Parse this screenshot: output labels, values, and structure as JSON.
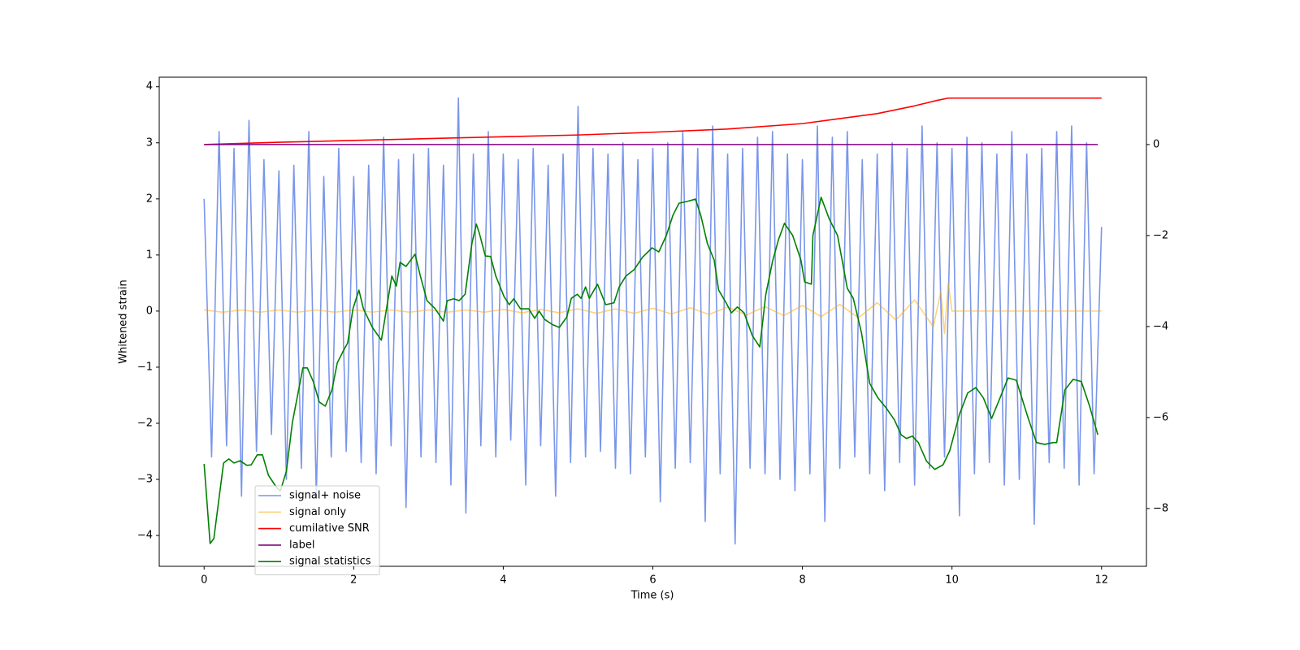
{
  "chart_data": {
    "type": "line",
    "xlabel": "Time (s)",
    "ylabel": "Whitened strain",
    "xlim": [
      -0.6,
      12.6
    ],
    "ylim": [
      -4.55,
      4.17
    ],
    "y2lim": [
      -9.27,
      1.48
    ],
    "xticks": [
      0,
      2,
      4,
      6,
      8,
      10,
      12
    ],
    "yticks": [
      {
        "value": -4,
        "label": "−4"
      },
      {
        "value": -3,
        "label": "−3"
      },
      {
        "value": -2,
        "label": "−2"
      },
      {
        "value": -1,
        "label": "−1"
      },
      0,
      1,
      2,
      3,
      4
    ],
    "y2ticks": [
      {
        "value": -8,
        "label": "−8"
      },
      {
        "value": -6,
        "label": "−6"
      },
      {
        "value": -4,
        "label": "−4"
      },
      {
        "value": -2,
        "label": "−2"
      },
      0
    ],
    "legend": "lower left",
    "series": [
      {
        "name": "signal+ noise",
        "color": "#4169e1",
        "opacity": 0.7,
        "x": [
          0,
          0.1,
          0.2,
          0.3,
          0.4,
          0.5,
          0.6,
          0.7,
          0.8,
          0.9,
          1,
          1.1,
          1.2,
          1.3,
          1.4,
          1.5,
          1.6,
          1.7,
          1.8,
          1.9,
          2,
          2.1,
          2.2,
          2.3,
          2.4,
          2.5,
          2.6,
          2.7,
          2.8,
          2.9,
          3,
          3.1,
          3.2,
          3.3,
          3.4,
          3.5,
          3.6,
          3.7,
          3.8,
          3.9,
          4,
          4.1,
          4.2,
          4.3,
          4.4,
          4.5,
          4.6,
          4.7,
          4.8,
          4.9,
          5,
          5.1,
          5.2,
          5.3,
          5.4,
          5.5,
          5.6,
          5.7,
          5.8,
          5.9,
          6,
          6.1,
          6.2,
          6.3,
          6.4,
          6.5,
          6.6,
          6.7,
          6.8,
          6.9,
          7,
          7.1,
          7.2,
          7.3,
          7.4,
          7.5,
          7.6,
          7.7,
          7.8,
          7.9,
          8,
          8.1,
          8.2,
          8.3,
          8.4,
          8.5,
          8.6,
          8.7,
          8.8,
          8.9,
          9,
          9.1,
          9.2,
          9.3,
          9.4,
          9.5,
          9.6,
          9.7,
          9.8,
          9.9,
          10,
          10.1,
          10.2,
          10.3,
          10.4,
          10.5,
          10.6,
          10.7,
          10.8,
          10.9,
          11,
          11.1,
          11.2,
          11.3,
          11.4,
          11.5,
          11.6,
          11.7,
          11.8,
          11.9,
          12
        ],
        "values": [
          2.0,
          -2.6,
          3.2,
          -2.4,
          2.9,
          -3.3,
          3.4,
          -2.5,
          2.7,
          -2.2,
          2.5,
          -3.0,
          2.6,
          -2.8,
          3.2,
          -3.3,
          2.4,
          -2.6,
          2.9,
          -2.5,
          2.4,
          -2.7,
          2.6,
          -2.9,
          3.1,
          -2.4,
          2.7,
          -3.5,
          2.8,
          -2.6,
          2.9,
          -2.7,
          2.6,
          -3.1,
          3.8,
          -3.6,
          2.8,
          -2.4,
          3.2,
          -2.6,
          2.8,
          -2.3,
          2.7,
          -3.1,
          2.9,
          -2.4,
          2.6,
          -3.3,
          2.8,
          -2.7,
          3.65,
          -2.6,
          2.9,
          -2.5,
          2.8,
          -2.8,
          3.0,
          -2.9,
          2.7,
          -2.6,
          2.9,
          -3.4,
          3.0,
          -2.8,
          3.2,
          -2.7,
          2.9,
          -3.75,
          3.3,
          -2.9,
          2.8,
          -4.15,
          2.9,
          -2.8,
          3.1,
          -2.9,
          3.2,
          -3.0,
          2.8,
          -3.2,
          2.7,
          -2.9,
          3.3,
          -3.75,
          3.1,
          -2.8,
          3.2,
          -2.6,
          2.7,
          -2.9,
          2.8,
          -3.2,
          3.0,
          -2.7,
          2.9,
          -3.1,
          3.3,
          -2.8,
          3.0,
          -2.6,
          2.9,
          -3.65,
          3.1,
          -2.9,
          3.0,
          -2.7,
          2.8,
          -3.1,
          3.2,
          -3.0,
          2.8,
          -3.8,
          2.9,
          -2.7,
          3.2,
          -2.8,
          3.3,
          -3.1,
          3.0,
          -2.9,
          1.5
        ]
      },
      {
        "name": "signal only",
        "color": "#ffa500",
        "opacity": 0.5,
        "x": [
          0,
          0.25,
          0.5,
          0.75,
          1,
          1.25,
          1.5,
          1.75,
          2,
          2.25,
          2.5,
          2.75,
          3,
          3.25,
          3.5,
          3.75,
          4,
          4.25,
          4.5,
          4.75,
          5,
          5.25,
          5.5,
          5.75,
          6,
          6.25,
          6.5,
          6.75,
          7,
          7.25,
          7.5,
          7.75,
          8,
          8.25,
          8.5,
          8.75,
          9,
          9.25,
          9.5,
          9.75,
          9.85,
          9.9,
          9.95,
          10,
          12
        ],
        "values": [
          0.02,
          -0.02,
          0.02,
          -0.02,
          0.02,
          -0.02,
          0.02,
          -0.02,
          0.02,
          -0.02,
          0.02,
          -0.02,
          0.02,
          -0.02,
          0.02,
          -0.02,
          0.03,
          -0.03,
          0.03,
          -0.03,
          0.04,
          -0.04,
          0.04,
          -0.04,
          0.05,
          -0.05,
          0.06,
          -0.06,
          0.07,
          -0.07,
          0.08,
          -0.08,
          0.1,
          -0.1,
          0.12,
          -0.12,
          0.15,
          -0.16,
          0.2,
          -0.28,
          0.35,
          -0.4,
          0.5,
          0,
          0
        ]
      },
      {
        "name": "cumilative SNR",
        "color": "#ff0000",
        "axis": "y2",
        "x": [
          0,
          1,
          2,
          3,
          4,
          5,
          6,
          7,
          8,
          9,
          9.5,
          9.8,
          9.95,
          10,
          12
        ],
        "values": [
          0,
          0.05,
          0.09,
          0.13,
          0.17,
          0.21,
          0.27,
          0.34,
          0.46,
          0.68,
          0.85,
          0.97,
          1.02,
          1.02,
          1.02
        ]
      },
      {
        "name": "label",
        "color": "#800080",
        "axis": "y2",
        "x": [
          0,
          11.95
        ],
        "values": [
          0,
          0
        ]
      },
      {
        "name": "signal statistics",
        "color": "#008000",
        "axis": "y2",
        "x": [
          0,
          0.08,
          0.13,
          0.26,
          0.33,
          0.4,
          0.48,
          0.57,
          0.63,
          0.71,
          0.78,
          0.86,
          0.97,
          1.02,
          1.1,
          1.18,
          1.32,
          1.38,
          1.46,
          1.54,
          1.62,
          1.71,
          1.78,
          1.86,
          1.92,
          1.99,
          2.07,
          2.13,
          2.25,
          2.37,
          2.51,
          2.57,
          2.62,
          2.7,
          2.82,
          2.89,
          2.98,
          3.09,
          3.2,
          3.25,
          3.34,
          3.41,
          3.49,
          3.58,
          3.64,
          3.68,
          3.76,
          3.83,
          3.9,
          4.01,
          4.08,
          4.14,
          4.23,
          4.34,
          4.42,
          4.48,
          4.55,
          4.66,
          4.75,
          4.85,
          4.91,
          4.99,
          5.04,
          5.1,
          5.15,
          5.26,
          5.37,
          5.48,
          5.55,
          5.64,
          5.75,
          5.86,
          5.99,
          6.08,
          6.18,
          6.27,
          6.35,
          6.46,
          6.57,
          6.64,
          6.73,
          6.82,
          6.88,
          6.98,
          7.05,
          7.13,
          7.22,
          7.33,
          7.43,
          7.51,
          7.6,
          7.68,
          7.76,
          7.87,
          7.98,
          8.03,
          8.12,
          8.14,
          8.25,
          8.36,
          8.47,
          8.6,
          8.68,
          8.79,
          8.9,
          9.01,
          9.12,
          9.23,
          9.32,
          9.39,
          9.47,
          9.55,
          9.66,
          9.77,
          9.88,
          9.97,
          10.1,
          10.21,
          10.32,
          10.42,
          10.53,
          10.62,
          10.75,
          10.86,
          11.02,
          11.13,
          11.24,
          11.35,
          11.4,
          11.51,
          11.62,
          11.73,
          11.84,
          11.95
        ],
        "values": [
          -7.02,
          -8.77,
          -8.66,
          -7.0,
          -6.91,
          -7.0,
          -6.95,
          -7.05,
          -7.04,
          -6.82,
          -6.82,
          -7.27,
          -7.54,
          -7.61,
          -7.18,
          -6.11,
          -4.91,
          -4.91,
          -5.21,
          -5.66,
          -5.75,
          -5.39,
          -4.8,
          -4.54,
          -4.36,
          -3.61,
          -3.2,
          -3.61,
          -4.02,
          -4.3,
          -2.89,
          -3.11,
          -2.59,
          -2.68,
          -2.41,
          -2.88,
          -3.43,
          -3.61,
          -3.88,
          -3.43,
          -3.39,
          -3.43,
          -3.29,
          -2.18,
          -1.75,
          -1.95,
          -2.45,
          -2.46,
          -2.89,
          -3.34,
          -3.52,
          -3.39,
          -3.61,
          -3.61,
          -3.82,
          -3.66,
          -3.84,
          -3.96,
          -4.02,
          -3.79,
          -3.38,
          -3.29,
          -3.38,
          -3.13,
          -3.38,
          -3.07,
          -3.52,
          -3.48,
          -3.13,
          -2.89,
          -2.75,
          -2.48,
          -2.27,
          -2.36,
          -2.0,
          -1.55,
          -1.29,
          -1.25,
          -1.2,
          -1.55,
          -2.18,
          -2.54,
          -3.2,
          -3.48,
          -3.7,
          -3.57,
          -3.7,
          -4.2,
          -4.45,
          -3.3,
          -2.57,
          -2.09,
          -1.73,
          -2.0,
          -2.54,
          -3.02,
          -3.07,
          -2.0,
          -1.16,
          -1.64,
          -2.0,
          -3.16,
          -3.38,
          -4.14,
          -5.25,
          -5.57,
          -5.79,
          -6.05,
          -6.38,
          -6.46,
          -6.41,
          -6.55,
          -6.96,
          -7.14,
          -7.04,
          -6.73,
          -5.93,
          -5.46,
          -5.34,
          -5.57,
          -6.02,
          -5.66,
          -5.13,
          -5.18,
          -6.02,
          -6.55,
          -6.59,
          -6.55,
          -6.55,
          -5.39,
          -5.16,
          -5.21,
          -5.75,
          -6.38
        ]
      }
    ]
  }
}
